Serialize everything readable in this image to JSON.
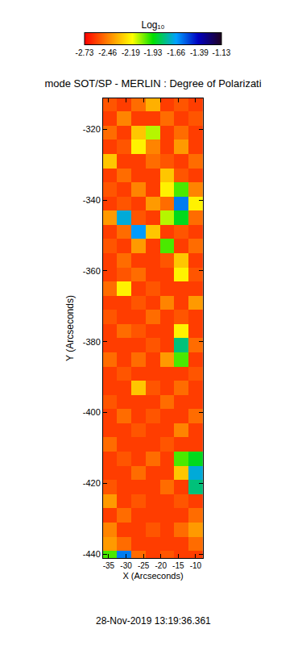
{
  "chart_data": {
    "type": "heatmap",
    "title": "mode SOT/SP - MERLIN : Degree of Polarizati",
    "x_label": "X (Arcseconds)",
    "y_label": "Y (Arcseconds)",
    "annotations": [
      "28-Nov-2019 13:19:36.361"
    ],
    "grid": false,
    "xlim": [
      -36.6,
      -7.9
    ],
    "ylim": [
      -441.1,
      -311.3
    ],
    "xticks": [
      -35,
      -30,
      -25,
      -20,
      -15,
      -10
    ],
    "yticks": [
      -440,
      -420,
      -400,
      -380,
      -360,
      -340,
      -320
    ],
    "x": [
      -34.6,
      -30.5,
      -26.4,
      -22.3,
      -18.2,
      -14.1,
      -10
    ],
    "y": [
      -313,
      -317,
      -321,
      -325,
      -329,
      -333,
      -337,
      -341,
      -345,
      -349,
      -353,
      -357,
      -361,
      -365,
      -369,
      -373,
      -377,
      -381,
      -385,
      -389,
      -393,
      -397,
      -401,
      -405,
      -409,
      -413,
      -417,
      -421,
      -425,
      -429,
      -433,
      -437,
      -441
    ],
    "cells": [
      [
        -2.55,
        -2.6,
        -2.5,
        -2.35,
        -2.6,
        -2.55,
        -2.6
      ],
      [
        -2.6,
        -2.45,
        -2.6,
        -2.6,
        -2.5,
        -2.6,
        -2.55
      ],
      [
        -2.5,
        -2.6,
        -2.3,
        -2.1,
        -2.6,
        -2.5,
        -2.6
      ],
      [
        -2.6,
        -2.55,
        -2.2,
        -2.45,
        -2.6,
        -2.4,
        -2.6
      ],
      [
        -2.3,
        -2.6,
        -2.6,
        -2.5,
        -2.55,
        -2.6,
        -2.5
      ],
      [
        -2.6,
        -2.5,
        -2.6,
        -2.6,
        -2.3,
        -2.55,
        -2.6
      ],
      [
        -2.55,
        -2.6,
        -2.45,
        -2.6,
        -2.2,
        -2.0,
        -2.45
      ],
      [
        -2.6,
        -2.55,
        -2.6,
        -2.4,
        -2.5,
        -1.6,
        -2.2
      ],
      [
        -2.4,
        -1.7,
        -2.55,
        -2.6,
        -2.1,
        -1.9,
        -2.5
      ],
      [
        -2.6,
        -2.5,
        -1.65,
        -2.3,
        -2.6,
        -2.55,
        -2.6
      ],
      [
        -2.55,
        -2.6,
        -2.4,
        -2.6,
        -2.0,
        -2.6,
        -2.5
      ],
      [
        -2.6,
        -2.5,
        -2.6,
        -2.6,
        -2.55,
        -2.3,
        -2.6
      ],
      [
        -2.6,
        -2.55,
        -2.5,
        -2.6,
        -2.6,
        -2.2,
        -2.55
      ],
      [
        -2.5,
        -2.2,
        -2.6,
        -2.55,
        -2.6,
        -2.6,
        -2.6
      ],
      [
        -2.6,
        -2.6,
        -2.55,
        -2.6,
        -2.45,
        -2.6,
        -2.4
      ],
      [
        -2.55,
        -2.6,
        -2.6,
        -2.5,
        -2.6,
        -2.55,
        -2.6
      ],
      [
        -2.6,
        -2.5,
        -2.55,
        -2.6,
        -2.6,
        -2.2,
        -2.6
      ],
      [
        -2.6,
        -2.6,
        -2.6,
        -2.55,
        -2.6,
        -1.8,
        -2.5
      ],
      [
        -2.5,
        -2.6,
        -2.5,
        -2.6,
        -2.4,
        -2.0,
        -2.6
      ],
      [
        -2.6,
        -2.55,
        -2.6,
        -2.6,
        -2.6,
        -2.6,
        -2.55
      ],
      [
        -2.6,
        -2.6,
        -2.3,
        -2.55,
        -2.6,
        -2.5,
        -2.6
      ],
      [
        -2.55,
        -2.6,
        -2.6,
        -2.6,
        -2.5,
        -2.6,
        -2.6
      ],
      [
        -2.6,
        -2.5,
        -2.6,
        -2.55,
        -2.6,
        -2.6,
        -2.5
      ],
      [
        -2.6,
        -2.6,
        -2.55,
        -2.6,
        -2.6,
        -2.45,
        -2.6
      ],
      [
        -2.5,
        -2.6,
        -2.6,
        -2.6,
        -2.55,
        -2.6,
        -2.6
      ],
      [
        -2.6,
        -2.55,
        -2.6,
        -2.5,
        -2.6,
        -2.0,
        -1.9
      ],
      [
        -2.6,
        -2.6,
        -2.5,
        -2.6,
        -2.6,
        -2.3,
        -1.7
      ],
      [
        -2.55,
        -2.6,
        -2.6,
        -2.6,
        -2.5,
        -2.6,
        -1.8
      ],
      [
        -2.4,
        -2.6,
        -2.55,
        -2.6,
        -2.6,
        -2.55,
        -2.6
      ],
      [
        -2.6,
        -2.5,
        -2.6,
        -2.6,
        -2.6,
        -2.6,
        -2.5
      ],
      [
        -2.45,
        -2.6,
        -2.6,
        -2.55,
        -2.6,
        -2.5,
        -2.4
      ],
      [
        -2.4,
        -2.5,
        -2.6,
        -2.6,
        -2.6,
        -2.6,
        -2.5
      ],
      [
        -2.0,
        -1.6,
        -2.5,
        -2.6,
        -2.55,
        -2.6,
        -2.6
      ]
    ],
    "colorbar": {
      "title": "Log₁₀",
      "range": [
        -2.73,
        -1.13
      ],
      "ticks": [
        -2.73,
        -2.46,
        -2.19,
        -1.93,
        -1.66,
        -1.39,
        -1.13
      ]
    }
  }
}
